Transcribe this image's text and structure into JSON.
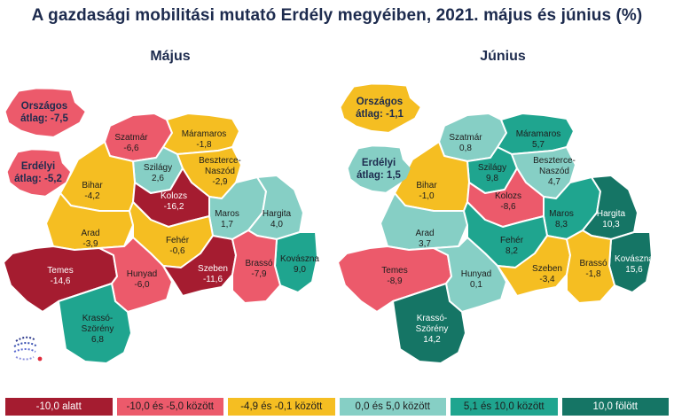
{
  "title": "A gazdasági mobilitási mutató Erdély megyéiben, 2021. május és június (%)",
  "colors": {
    "c1": "#a51c30",
    "c2": "#ec5a6b",
    "c3": "#f5be22",
    "c4": "#86cfc5",
    "c5": "#1fa58f",
    "c6": "#157565"
  },
  "legend": [
    {
      "label": "-10,0 alatt",
      "color_key": "c1",
      "text_color": "#ffffff"
    },
    {
      "label": "-10,0 és -5,0 között",
      "color_key": "c2",
      "text_color": "#1d1d1d"
    },
    {
      "label": "-4,9 és -0,1 között",
      "color_key": "c3",
      "text_color": "#1d1d1d"
    },
    {
      "label": "0,0 és 5,0 között",
      "color_key": "c4",
      "text_color": "#1d1d1d"
    },
    {
      "label": "5,1 és 10,0 között",
      "color_key": "c5",
      "text_color": "#1d1d1d"
    },
    {
      "label": "10,0 fölött",
      "color_key": "c6",
      "text_color": "#ffffff"
    }
  ],
  "maps": [
    {
      "id": "majus",
      "title": "Május",
      "national": {
        "line1": "Országos",
        "line2": "átlag: -7,5",
        "color_key": "c2"
      },
      "transylvania": {
        "line1": "Erdélyi",
        "line2": "átlag: -5,2",
        "color_key": "c2"
      },
      "counties": {
        "satmar": {
          "name": "Szatmár",
          "value": "-6,6",
          "color_key": "c2"
        },
        "maram": {
          "name": "Máramaros",
          "value": "-1,8",
          "color_key": "c3"
        },
        "szilagy": {
          "name": "Szilágy",
          "value": "2,6",
          "color_key": "c4"
        },
        "bistrita": {
          "name": "Beszterce-\nNaszód",
          "value": "-2,9",
          "color_key": "c3"
        },
        "bihar": {
          "name": "Bihar",
          "value": "-4,2",
          "color_key": "c3"
        },
        "kolozs": {
          "name": "Kolozs",
          "value": "-16,2",
          "color_key": "c1"
        },
        "maros": {
          "name": "Maros",
          "value": "1,7",
          "color_key": "c4"
        },
        "hargita": {
          "name": "Hargita",
          "value": "4,0",
          "color_key": "c4"
        },
        "arad": {
          "name": "Arad",
          "value": "-3,9",
          "color_key": "c3"
        },
        "feher": {
          "name": "Fehér",
          "value": "-0,6",
          "color_key": "c3"
        },
        "kovaszna": {
          "name": "Kovászna",
          "value": "9,0",
          "color_key": "c5"
        },
        "temes": {
          "name": "Temes",
          "value": "-14,6",
          "color_key": "c1"
        },
        "hunyad": {
          "name": "Hunyad",
          "value": "-6,0",
          "color_key": "c2"
        },
        "szeben": {
          "name": "Szeben",
          "value": "-11,6",
          "color_key": "c1"
        },
        "brasso": {
          "name": "Brassó",
          "value": "-7,9",
          "color_key": "c2"
        },
        "krasso": {
          "name": "Krassó-\nSzörény",
          "value": "6,8",
          "color_key": "c5"
        }
      }
    },
    {
      "id": "junius",
      "title": "Június",
      "national": {
        "line1": "Országos",
        "line2": "átlag: -1,1",
        "color_key": "c3"
      },
      "transylvania": {
        "line1": "Erdélyi",
        "line2": "átlag: 1,5",
        "color_key": "c4"
      },
      "counties": {
        "satmar": {
          "name": "Szatmár",
          "value": "0,8",
          "color_key": "c4"
        },
        "maram": {
          "name": "Máramaros",
          "value": "5,7",
          "color_key": "c5"
        },
        "szilagy": {
          "name": "Szilágy",
          "value": "9,8",
          "color_key": "c5"
        },
        "bistrita": {
          "name": "Beszterce-\nNaszód",
          "value": "4,7",
          "color_key": "c4"
        },
        "bihar": {
          "name": "Bihar",
          "value": "-1,0",
          "color_key": "c3"
        },
        "kolozs": {
          "name": "Kolozs",
          "value": "-8,6",
          "color_key": "c2"
        },
        "maros": {
          "name": "Maros",
          "value": "8,3",
          "color_key": "c5"
        },
        "hargita": {
          "name": "Hargita",
          "value": "10,3",
          "color_key": "c6"
        },
        "arad": {
          "name": "Arad",
          "value": "3,7",
          "color_key": "c4"
        },
        "feher": {
          "name": "Fehér",
          "value": "8,2",
          "color_key": "c5"
        },
        "kovaszna": {
          "name": "Kovászna",
          "value": "15,6",
          "color_key": "c6"
        },
        "temes": {
          "name": "Temes",
          "value": "-8,9",
          "color_key": "c2"
        },
        "hunyad": {
          "name": "Hunyad",
          "value": "0,1",
          "color_key": "c4"
        },
        "szeben": {
          "name": "Szeben",
          "value": "-3,4",
          "color_key": "c3"
        },
        "brasso": {
          "name": "Brassó",
          "value": "-1,8",
          "color_key": "c3"
        },
        "krasso": {
          "name": "Krassó-\nSzörény",
          "value": "14,2",
          "color_key": "c6"
        }
      }
    }
  ]
}
